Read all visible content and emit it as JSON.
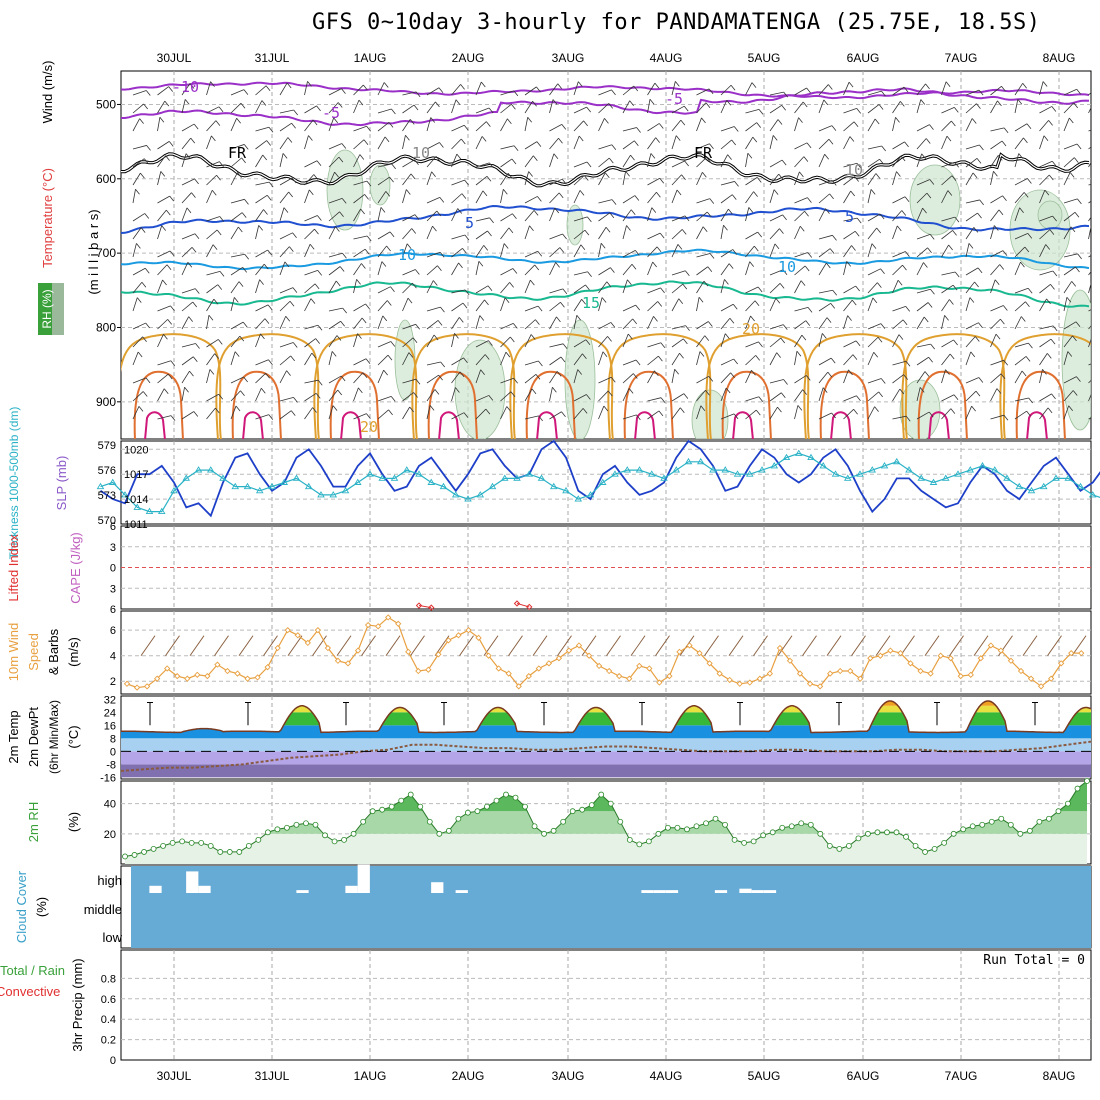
{
  "title": "GFS 0~10day 3-hourly for PANDAMATENGA (25.75E, 18.5S)",
  "dates": [
    "30JUL",
    "31JUL",
    "1AUG",
    "2AUG",
    "3AUG",
    "4AUG",
    "5AUG",
    "6AUG",
    "7AUG",
    "8AUG"
  ],
  "colors": {
    "slp": "#1e3fc8",
    "thickness": "#2ab2c6",
    "wind10m": "#e8a040",
    "rh2m": "#3aa03a",
    "cloud": "#66aad6",
    "lifted": "#e03030",
    "cape": "#c060c0",
    "dewpoint": "#8a5a40",
    "temp_line": "#7a3a20"
  },
  "panels": {
    "upper": {
      "labels": [
        "Wind (m/s)",
        "Temperature (°C)",
        "RH (%)",
        "(m i l l i b a r s)"
      ],
      "y_ticks": [
        "500",
        "600",
        "700",
        "800",
        "900"
      ]
    },
    "slp": {
      "labels": [
        "Thickness 1000-500mb (dm)",
        "SLP (mb)"
      ],
      "left_ticks": [
        "579",
        "576",
        "573",
        "570"
      ],
      "right_ticks": [
        "1020",
        "1017",
        "1014",
        "1011"
      ]
    },
    "lifted": {
      "labels": [
        "Lifted Index",
        "CAPE (J/kg)"
      ],
      "ticks": [
        "6",
        "3",
        "0",
        "3",
        "6"
      ]
    },
    "wind10m": {
      "labels": [
        "10m Wind",
        "Speed",
        "& Barbs",
        "(m/s)"
      ],
      "ticks": [
        "6",
        "4",
        "2"
      ]
    },
    "temp2m": {
      "labels": [
        "2m Temp",
        "2m DewPt",
        "(6hr Min/Max)",
        "(°C)"
      ],
      "ticks": [
        "32",
        "24",
        "16",
        "8",
        "0",
        "-8",
        "-16"
      ]
    },
    "rh2m": {
      "labels": [
        "2m RH",
        "(%)"
      ],
      "ticks": [
        "40",
        "20"
      ]
    },
    "cloud": {
      "labels": [
        "Cloud Cover",
        "(%)"
      ],
      "levels": [
        "high",
        "middle",
        "low"
      ]
    },
    "precip": {
      "labels": [
        "Total / Rain",
        "Convective",
        "3hr Precip (mm)"
      ],
      "ticks": [
        "0.8",
        "0.6",
        "0.4",
        "0.2",
        "0"
      ],
      "run_total": "Run Total = 0"
    }
  },
  "chart_data": [
    {
      "type": "line",
      "title": "Sea level pressure and 1000-500mb thickness",
      "x_start": "29JUL 18Z",
      "x_step_hours": 3,
      "series": [
        {
          "name": "SLP (mb)",
          "ylim": [
            1011,
            1021
          ],
          "values": [
            1015,
            1014,
            1013.5,
            1017,
            1017,
            1018,
            1016,
            1013,
            1013.5,
            1012,
            1016,
            1019,
            1019.5,
            1017,
            1015,
            1016,
            1019,
            1020,
            1018,
            1015.5,
            1015.5,
            1018,
            1019.5,
            1017,
            1015,
            1015.5,
            1018,
            1019,
            1017,
            1015,
            1017,
            1019.5,
            1020,
            1018,
            1016.5,
            1017,
            1020,
            1021,
            1019,
            1015,
            1014,
            1017,
            1018,
            1016,
            1014.5,
            1015,
            1016,
            1019,
            1021,
            1020,
            1018,
            1015,
            1015.5,
            1018,
            1020,
            1019,
            1017,
            1016,
            1017,
            1019,
            1020,
            1018,
            1015,
            1012.5,
            1014,
            1016.5,
            1016.5,
            1015,
            1014,
            1013,
            1013.5,
            1016,
            1018,
            1017,
            1015,
            1014,
            1016,
            1018,
            1019,
            1017,
            1015,
            1016,
            1018,
            1018.5,
            1017.5,
            1016,
            1016.5,
            1018,
            1019.5,
            1021
          ]
        },
        {
          "name": "Thickness 1000-500mb (dm)",
          "ylim": [
            569.5,
            579.5
          ],
          "values": [
            574,
            574.5,
            573,
            571.5,
            571,
            571,
            573.5,
            575,
            576,
            576,
            575,
            574,
            574,
            573.5,
            574,
            574.5,
            575,
            574,
            573,
            573,
            573.5,
            574.5,
            575.5,
            575,
            575,
            576,
            575.5,
            574.5,
            574,
            573,
            572.5,
            573,
            574,
            575,
            575,
            575.5,
            575,
            574,
            573.5,
            572.5,
            573,
            574.5,
            575.5,
            576,
            576,
            575.5,
            575,
            576,
            577,
            577,
            576,
            576,
            575.5,
            575.5,
            576,
            576.5,
            577.5,
            578,
            577.5,
            576.5,
            575.5,
            575,
            575.5,
            576,
            576.5,
            577,
            576,
            575,
            574.5,
            575,
            575.5,
            576,
            576.5,
            576,
            575,
            574,
            573.5,
            574,
            575,
            575,
            574,
            573,
            572.5,
            573,
            574,
            574,
            574
          ]
        }
      ]
    },
    {
      "type": "line",
      "title": "Lifted Index",
      "ylim": [
        -6,
        6
      ],
      "series": [
        {
          "name": "Lifted Index (plotted points)",
          "x": [
            "1AUG 12Z",
            "1AUG 15Z",
            "2AUG 12Z",
            "2AUG 15Z"
          ],
          "values": [
            5.5,
            5.8,
            5.2,
            5.7
          ]
        }
      ]
    },
    {
      "type": "line",
      "title": "10m Wind Speed",
      "ylim": [
        1,
        7.5
      ],
      "series": [
        {
          "name": "10m wind speed (m/s)",
          "values": [
            1.8,
            1.5,
            1.6,
            2.2,
            3,
            2.4,
            2.2,
            2.5,
            2.4,
            3.3,
            2.8,
            2.6,
            2.2,
            2.3,
            3.1,
            4.6,
            6,
            5.6,
            5,
            6,
            4.6,
            3.6,
            3.4,
            4.4,
            6.4,
            6.3,
            7,
            6.5,
            4.3,
            2.8,
            2.9,
            4.1,
            5.2,
            5.6,
            6,
            5.4,
            4,
            3,
            2.6,
            1.6,
            2.4,
            3,
            3.4,
            3.8,
            4.4,
            4.8,
            4,
            3.2,
            2.8,
            2.4,
            2.2,
            3.2,
            3,
            1.9,
            2.4,
            4.3,
            4.8,
            4.2,
            3.4,
            2.6,
            2.1,
            1.8,
            1.9,
            2.2,
            2.6,
            4.6,
            3.6,
            2.6,
            1.8,
            1.6,
            2.6,
            2.8,
            2.8,
            2.2,
            3.8,
            4,
            4.4,
            4.2,
            3.4,
            2.8,
            2.6,
            4,
            3.8,
            2.4,
            2.5,
            3.8,
            4.8,
            4.4,
            3.6,
            2.8,
            2.2,
            1.6,
            2.2,
            3.4,
            4.2,
            4.2
          ]
        }
      ]
    },
    {
      "type": "area",
      "title": "2m Temperature and Dew Point",
      "ylim": [
        -17,
        34
      ],
      "series": [
        {
          "name": "2m Temp (°C)",
          "days_max": [
            14,
            28,
            27,
            27,
            27,
            28,
            28,
            31,
            31,
            27
          ],
          "night_min": 12
        },
        {
          "name": "2m DewPt (°C)",
          "values": [
            -12,
            -11,
            -10,
            -10,
            -9,
            -8,
            -6,
            -4,
            -3,
            -2,
            0,
            1,
            4,
            4,
            3,
            2,
            2,
            1,
            1,
            2,
            3,
            3,
            2,
            1,
            0,
            0,
            0,
            1,
            1,
            0,
            0,
            0,
            1,
            1,
            0,
            0,
            0,
            1,
            2,
            4,
            6
          ]
        }
      ]
    },
    {
      "type": "area",
      "title": "2m RH",
      "ylim": [
        0,
        55
      ],
      "series": [
        {
          "name": "2m RH (%)",
          "values": [
            5,
            6,
            8,
            10,
            12,
            14,
            15,
            14,
            14,
            12,
            8,
            8,
            8,
            12,
            16,
            21,
            23,
            24,
            26,
            27,
            26,
            19,
            15,
            16,
            20,
            28,
            35,
            36,
            38,
            42,
            46,
            38,
            28,
            20,
            22,
            30,
            34,
            35,
            38,
            42,
            46,
            44,
            38,
            25,
            20,
            22,
            28,
            35,
            36,
            39,
            46,
            40,
            28,
            16,
            13,
            15,
            20,
            24,
            24,
            23,
            25,
            27,
            30,
            26,
            16,
            14,
            15,
            19,
            21,
            24,
            25,
            27,
            26,
            20,
            12,
            10,
            12,
            17,
            20,
            21,
            21,
            21,
            18,
            12,
            8,
            10,
            14,
            20,
            23,
            25,
            26,
            28,
            30,
            26,
            20,
            22,
            28,
            30,
            35,
            40,
            50,
            55
          ]
        }
      ]
    },
    {
      "type": "bar",
      "title": "Cloud Cover (%)",
      "series": [
        {
          "name": "high",
          "x": [
            "30JUL 06Z",
            "30JUL 15Z",
            "30JUL 18Z",
            "31JUL 18Z",
            "1AUG 06Z",
            "1AUG 09Z",
            "2AUG 03Z",
            "2AUG 09Z",
            "4AUG 06Z",
            "4AUG 09Z",
            "4AUG 12Z",
            "5AUG 00Z",
            "5AUG 06Z",
            "5AUG 09Z",
            "5AUG 12Z"
          ],
          "values": [
            20,
            60,
            20,
            8,
            20,
            80,
            30,
            8,
            8,
            8,
            8,
            8,
            12,
            8,
            8
          ]
        }
      ]
    },
    {
      "type": "bar",
      "title": "3hr Precip (mm)",
      "ylim": [
        0,
        1
      ],
      "series": [
        {
          "name": "Total / Rain",
          "values": []
        },
        {
          "name": "Convective",
          "values": []
        }
      ]
    }
  ]
}
